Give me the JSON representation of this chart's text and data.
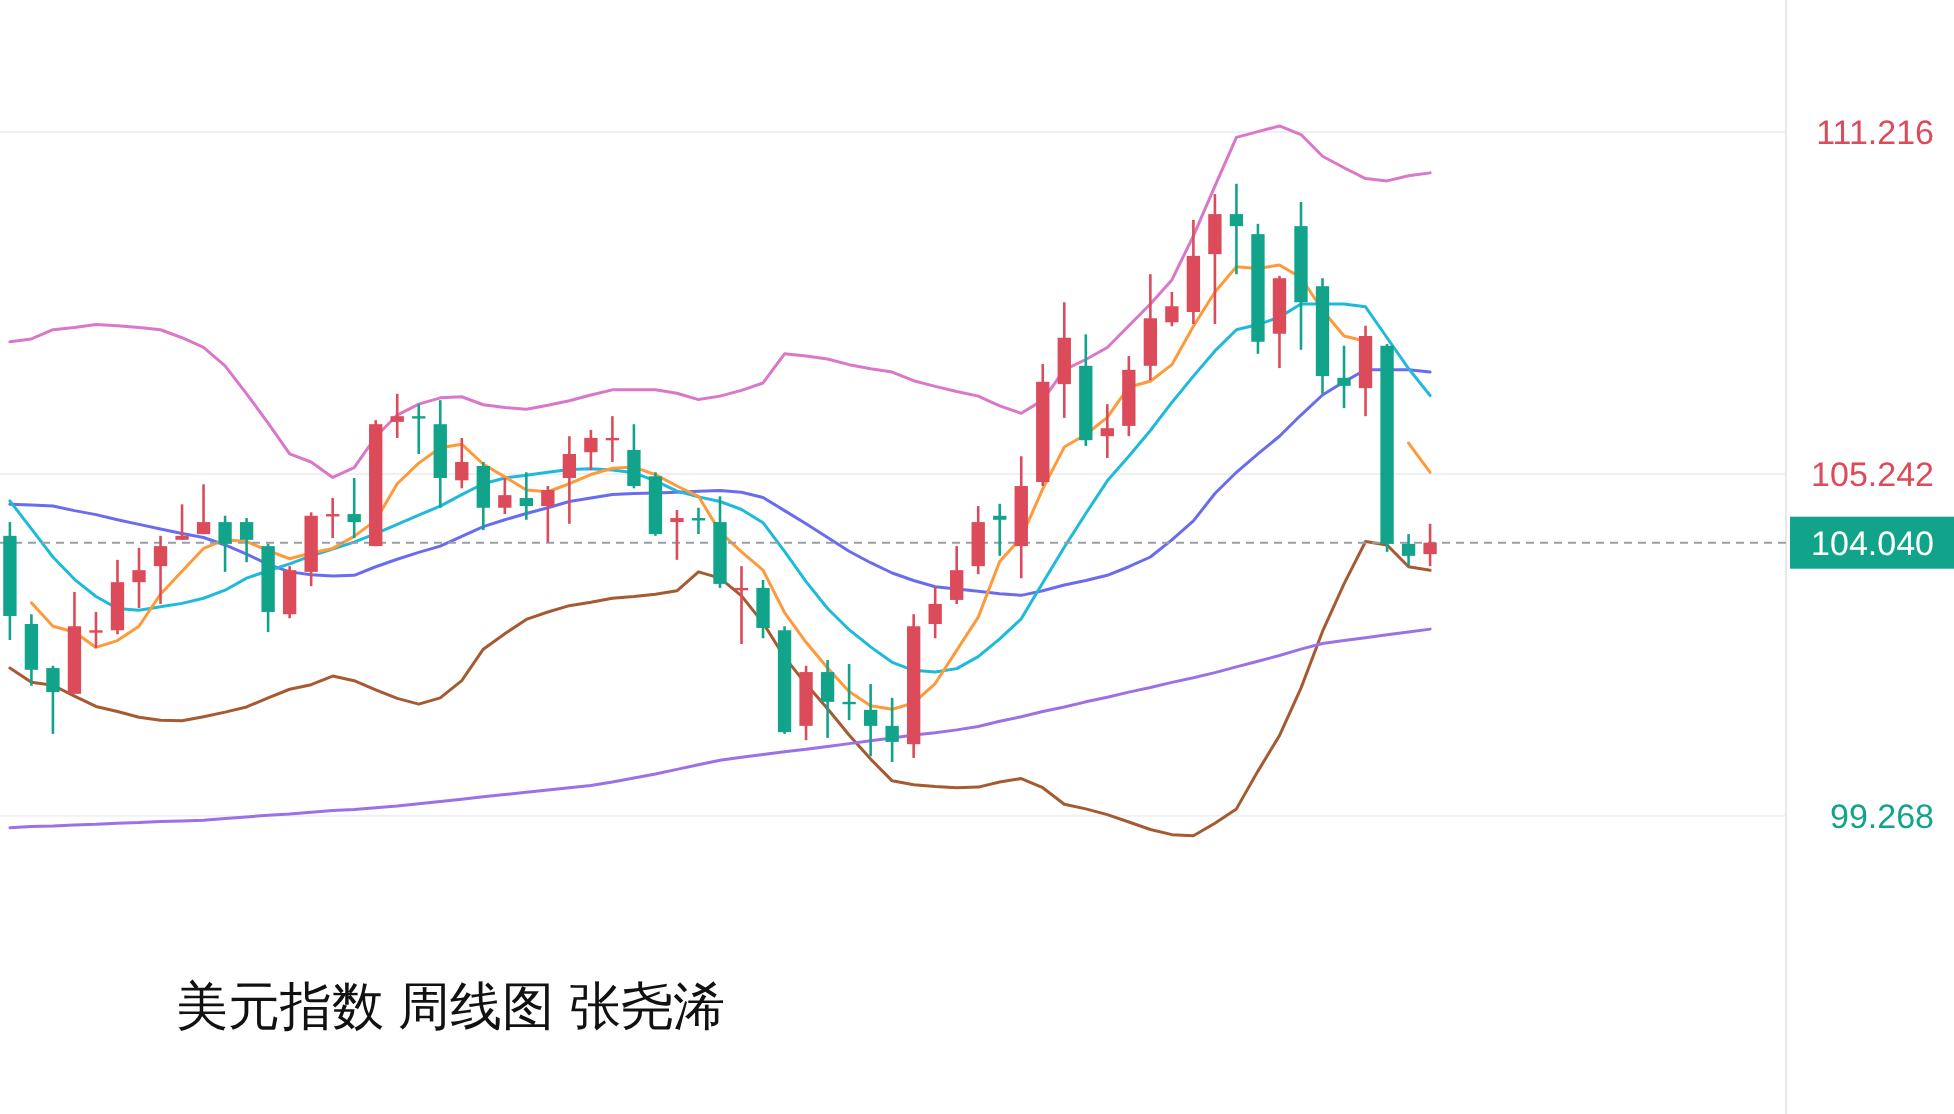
{
  "chart_data": {
    "type": "candlestick",
    "title": "美元指数 周线图 张尧浠",
    "categories": [
      null,
      null,
      null,
      null,
      null,
      null,
      null,
      null,
      null,
      null,
      null,
      null,
      null,
      null,
      null,
      null,
      null,
      null,
      null,
      null,
      null,
      null,
      null,
      null,
      null,
      null,
      null,
      null,
      null,
      null,
      null,
      null,
      null,
      null,
      null,
      null,
      null,
      null,
      null,
      null,
      null,
      null,
      null,
      null,
      null,
      null,
      null,
      null,
      null,
      null,
      null,
      null,
      null,
      null,
      null,
      null,
      null,
      null,
      null,
      null,
      null,
      null,
      null,
      null,
      null,
      null,
      null
    ],
    "ohlc": [
      [
        104.16,
        104.4,
        102.34,
        102.76
      ],
      [
        102.62,
        102.79,
        101.54,
        101.82
      ],
      [
        101.85,
        101.89,
        100.7,
        101.43
      ],
      [
        101.4,
        103.18,
        101.4,
        102.58
      ],
      [
        102.48,
        102.83,
        102.2,
        102.51
      ],
      [
        102.51,
        103.74,
        102.44,
        103.35
      ],
      [
        103.35,
        103.95,
        102.9,
        103.56
      ],
      [
        103.63,
        104.16,
        102.97,
        103.98
      ],
      [
        104.09,
        104.71,
        104.09,
        104.16
      ],
      [
        104.19,
        105.06,
        104.19,
        104.4
      ],
      [
        104.4,
        104.51,
        103.53,
        104.02
      ],
      [
        104.4,
        104.47,
        103.7,
        104.09
      ],
      [
        103.98,
        104.02,
        102.48,
        102.83
      ],
      [
        102.79,
        103.63,
        102.72,
        103.56
      ],
      [
        103.53,
        104.57,
        103.28,
        104.51
      ],
      [
        104.51,
        104.82,
        104.12,
        104.54
      ],
      [
        104.54,
        105.17,
        104.12,
        104.4
      ],
      [
        103.98,
        106.18,
        103.98,
        106.11
      ],
      [
        106.15,
        106.64,
        105.87,
        106.25
      ],
      [
        106.25,
        106.46,
        105.59,
        106.22
      ],
      [
        106.11,
        106.53,
        104.65,
        105.17
      ],
      [
        105.13,
        105.87,
        104.99,
        105.45
      ],
      [
        105.38,
        105.45,
        104.26,
        104.65
      ],
      [
        104.65,
        105.17,
        104.54,
        104.87
      ],
      [
        104.82,
        105.27,
        104.44,
        104.68
      ],
      [
        104.68,
        105.03,
        104.05,
        104.96
      ],
      [
        105.17,
        105.9,
        104.37,
        105.59
      ],
      [
        105.62,
        106.01,
        105.31,
        105.87
      ],
      [
        105.83,
        106.25,
        105.45,
        105.87
      ],
      [
        105.66,
        106.11,
        104.99,
        105.03
      ],
      [
        105.2,
        105.27,
        104.16,
        104.19
      ],
      [
        104.4,
        104.61,
        103.74,
        104.47
      ],
      [
        104.47,
        104.65,
        104.19,
        104.44
      ],
      [
        104.4,
        104.85,
        103.25,
        103.32
      ],
      [
        103.21,
        103.63,
        102.27,
        103.25
      ],
      [
        103.25,
        103.39,
        102.37,
        102.55
      ],
      [
        102.51,
        102.58,
        100.7,
        100.73
      ],
      [
        100.84,
        101.89,
        100.59,
        101.78
      ],
      [
        101.78,
        101.99,
        100.63,
        101.26
      ],
      [
        101.26,
        101.92,
        100.94,
        101.22
      ],
      [
        101.12,
        101.57,
        100.31,
        100.84
      ],
      [
        100.84,
        101.33,
        100.21,
        100.56
      ],
      [
        100.52,
        102.79,
        100.28,
        102.58
      ],
      [
        102.62,
        103.28,
        102.37,
        102.97
      ],
      [
        103.04,
        103.98,
        102.97,
        103.56
      ],
      [
        103.63,
        104.68,
        103.49,
        104.4
      ],
      [
        104.51,
        104.72,
        103.81,
        104.44
      ],
      [
        103.98,
        105.55,
        103.42,
        105.03
      ],
      [
        105.1,
        107.16,
        105.03,
        106.85
      ],
      [
        106.81,
        108.24,
        106.22,
        107.62
      ],
      [
        107.13,
        107.68,
        105.73,
        105.83
      ],
      [
        105.9,
        106.46,
        105.52,
        106.04
      ],
      [
        106.08,
        107.3,
        105.9,
        107.06
      ],
      [
        107.13,
        108.73,
        106.88,
        107.96
      ],
      [
        107.89,
        108.42,
        107.82,
        108.17
      ],
      [
        108.07,
        109.68,
        107.86,
        109.05
      ],
      [
        109.08,
        110.13,
        107.86,
        109.78
      ],
      [
        109.78,
        110.31,
        108.73,
        109.57
      ],
      [
        109.43,
        109.61,
        107.34,
        107.55
      ],
      [
        107.69,
        108.7,
        107.09,
        108.66
      ],
      [
        109.57,
        109.99,
        107.41,
        108.24
      ],
      [
        108.52,
        108.66,
        106.64,
        106.95
      ],
      [
        106.92,
        107.48,
        106.39,
        106.78
      ],
      [
        106.74,
        107.83,
        106.25,
        107.65
      ],
      [
        107.48,
        107.51,
        103.88,
        104.02
      ],
      [
        104.02,
        104.19,
        103.63,
        103.81
      ],
      [
        103.84,
        104.37,
        103.63,
        104.04
      ]
    ],
    "colors": [
      "#12a48a",
      "#12a48a",
      "#12a48a",
      "#dc4b5a",
      "#dc4b5a",
      "#dc4b5a",
      "#dc4b5a",
      "#dc4b5a",
      "#dc4b5a",
      "#dc4b5a",
      "#12a48a",
      "#12a48a",
      "#12a48a",
      "#dc4b5a",
      "#dc4b5a",
      "#dc4b5a",
      "#12a48a",
      "#dc4b5a",
      "#dc4b5a",
      "#12a48a",
      "#12a48a",
      "#dc4b5a",
      "#12a48a",
      "#dc4b5a",
      "#12a48a",
      "#dc4b5a",
      "#dc4b5a",
      "#dc4b5a",
      "#dc4b5a",
      "#12a48a",
      "#12a48a",
      "#dc4b5a",
      "#12a48a",
      "#12a48a",
      "#dc4b5a",
      "#12a48a",
      "#12a48a",
      "#dc4b5a",
      "#12a48a",
      "#12a48a",
      "#12a48a",
      "#12a48a",
      "#dc4b5a",
      "#dc4b5a",
      "#dc4b5a",
      "#dc4b5a",
      "#12a48a",
      "#dc4b5a",
      "#dc4b5a",
      "#dc4b5a",
      "#12a48a",
      "#dc4b5a",
      "#dc4b5a",
      "#dc4b5a",
      "#dc4b5a",
      "#dc4b5a",
      "#dc4b5a",
      "#12a48a",
      "#12a48a",
      "#dc4b5a",
      "#12a48a",
      "#12a48a",
      "#12a48a",
      "#dc4b5a",
      "#12a48a",
      "#12a48a",
      "#dc4b5a"
    ],
    "series": [
      {
        "type": "line",
        "color": "#d977c9",
        "values": [
          107.55,
          107.6,
          107.76,
          107.8,
          107.85,
          107.83,
          107.8,
          107.76,
          107.62,
          107.45,
          107.13,
          106.64,
          106.13,
          105.59,
          105.45,
          105.18,
          105.35,
          105.89,
          106.27,
          106.46,
          106.57,
          106.59,
          106.45,
          106.4,
          106.37,
          106.44,
          106.52,
          106.62,
          106.71,
          106.71,
          106.71,
          106.65,
          106.54,
          106.6,
          106.7,
          106.83,
          107.34,
          107.3,
          107.25,
          107.15,
          107.08,
          107.02,
          106.87,
          106.77,
          106.68,
          106.6,
          106.43,
          106.3,
          106.53,
          107.06,
          107.24,
          107.45,
          107.83,
          108.21,
          108.63,
          109.4,
          110.27,
          111.12,
          111.22,
          111.32,
          111.17,
          110.79,
          110.59,
          110.4,
          110.36,
          110.45,
          110.5
        ]
      },
      {
        "type": "line",
        "color": "#a65a32",
        "values": [
          101.85,
          101.6,
          101.55,
          101.36,
          101.18,
          101.09,
          100.99,
          100.94,
          100.93,
          101.0,
          101.08,
          101.17,
          101.33,
          101.48,
          101.56,
          101.71,
          101.63,
          101.47,
          101.32,
          101.22,
          101.33,
          101.63,
          102.18,
          102.45,
          102.7,
          102.83,
          102.94,
          103.0,
          103.07,
          103.1,
          103.14,
          103.2,
          103.53,
          103.42,
          103.11,
          102.64,
          102.04,
          101.57,
          101.14,
          100.68,
          100.26,
          99.88,
          99.81,
          99.78,
          99.76,
          99.77,
          99.86,
          99.92,
          99.76,
          99.47,
          99.39,
          99.29,
          99.16,
          99.03,
          98.94,
          98.92,
          99.14,
          99.39,
          100.05,
          100.67,
          101.5,
          102.49,
          103.32,
          104.06,
          104.0,
          103.62,
          103.56
        ]
      },
      {
        "type": "line",
        "color": "#6a6cf0",
        "values": [
          104.71,
          104.7,
          104.68,
          104.6,
          104.53,
          104.44,
          104.36,
          104.28,
          104.2,
          104.13,
          104.0,
          103.84,
          103.66,
          103.53,
          103.48,
          103.46,
          103.47,
          103.62,
          103.75,
          103.87,
          103.98,
          104.15,
          104.32,
          104.44,
          104.55,
          104.65,
          104.76,
          104.82,
          104.88,
          104.9,
          104.91,
          104.92,
          104.94,
          104.95,
          104.92,
          104.83,
          104.6,
          104.37,
          104.13,
          103.89,
          103.69,
          103.51,
          103.38,
          103.27,
          103.23,
          103.19,
          103.15,
          103.12,
          103.2,
          103.3,
          103.38,
          103.47,
          103.62,
          103.79,
          104.09,
          104.42,
          104.9,
          105.27,
          105.59,
          105.9,
          106.27,
          106.62,
          106.85,
          107.06,
          107.06,
          107.06,
          107.02
        ]
      },
      {
        "type": "line",
        "color": "#1fbadb",
        "values": [
          104.77,
          104.28,
          103.79,
          103.4,
          103.1,
          102.89,
          102.86,
          102.92,
          102.98,
          103.07,
          103.21,
          103.42,
          103.55,
          103.67,
          103.81,
          103.93,
          104.05,
          104.2,
          104.36,
          104.52,
          104.68,
          104.88,
          105.07,
          105.17,
          105.22,
          105.27,
          105.32,
          105.33,
          105.31,
          105.26,
          105.12,
          104.94,
          104.84,
          104.76,
          104.62,
          104.39,
          103.89,
          103.36,
          102.89,
          102.52,
          102.22,
          101.95,
          101.81,
          101.78,
          101.84,
          102.05,
          102.36,
          102.71,
          103.34,
          103.96,
          104.55,
          105.12,
          105.55,
          106.0,
          106.49,
          106.95,
          107.39,
          107.76,
          107.85,
          107.98,
          108.21,
          108.21,
          108.21,
          108.16,
          107.62,
          107.08,
          106.61
        ]
      },
      {
        "type": "line",
        "color": "#ff9a3a",
        "values": [
          null,
          102.99,
          102.58,
          102.48,
          102.21,
          102.33,
          102.58,
          103.14,
          103.54,
          103.94,
          104.09,
          104.06,
          103.9,
          103.76,
          103.86,
          103.94,
          104.15,
          104.43,
          105.07,
          105.43,
          105.7,
          105.76,
          105.41,
          105.19,
          104.96,
          104.93,
          105.07,
          105.23,
          105.34,
          105.36,
          105.23,
          105.03,
          104.85,
          104.23,
          103.88,
          103.56,
          102.82,
          102.3,
          101.85,
          101.44,
          101.19,
          101.13,
          101.24,
          101.58,
          102.16,
          102.74,
          103.71,
          104.13,
          104.98,
          105.71,
          105.93,
          106.23,
          106.76,
          106.86,
          107.15,
          107.82,
          108.42,
          108.86,
          108.83,
          108.89,
          108.67,
          108.1,
          107.65,
          107.56,
          null,
          105.78,
          105.27
        ]
      },
      {
        "type": "line",
        "color": "#9b72e6",
        "values": [
          99.06,
          99.08,
          99.09,
          99.11,
          99.12,
          99.14,
          99.15,
          99.17,
          99.18,
          99.19,
          99.22,
          99.25,
          99.28,
          99.3,
          99.33,
          99.36,
          99.38,
          99.41,
          99.44,
          99.48,
          99.52,
          99.56,
          99.6,
          99.64,
          99.68,
          99.72,
          99.76,
          99.8,
          99.86,
          99.93,
          100.0,
          100.08,
          100.16,
          100.24,
          100.29,
          100.34,
          100.39,
          100.43,
          100.48,
          100.53,
          100.58,
          100.63,
          100.68,
          100.72,
          100.77,
          100.83,
          100.92,
          101.0,
          101.09,
          101.17,
          101.26,
          101.34,
          101.43,
          101.51,
          101.6,
          101.68,
          101.77,
          101.87,
          101.97,
          102.07,
          102.18,
          102.28,
          102.33,
          102.38,
          102.43,
          102.48,
          102.53
        ]
      }
    ],
    "ylim": [
      94.06,
      113.52
    ],
    "yticks": [
      99.268,
      105.242,
      111.216
    ],
    "grid": "y",
    "tick_labels": "y",
    "ref_lines": [
      {
        "axis": "y",
        "value": 104.04,
        "label": "104.040",
        "color": "#9a9ea6",
        "line_style": "dashed"
      }
    ]
  }
}
